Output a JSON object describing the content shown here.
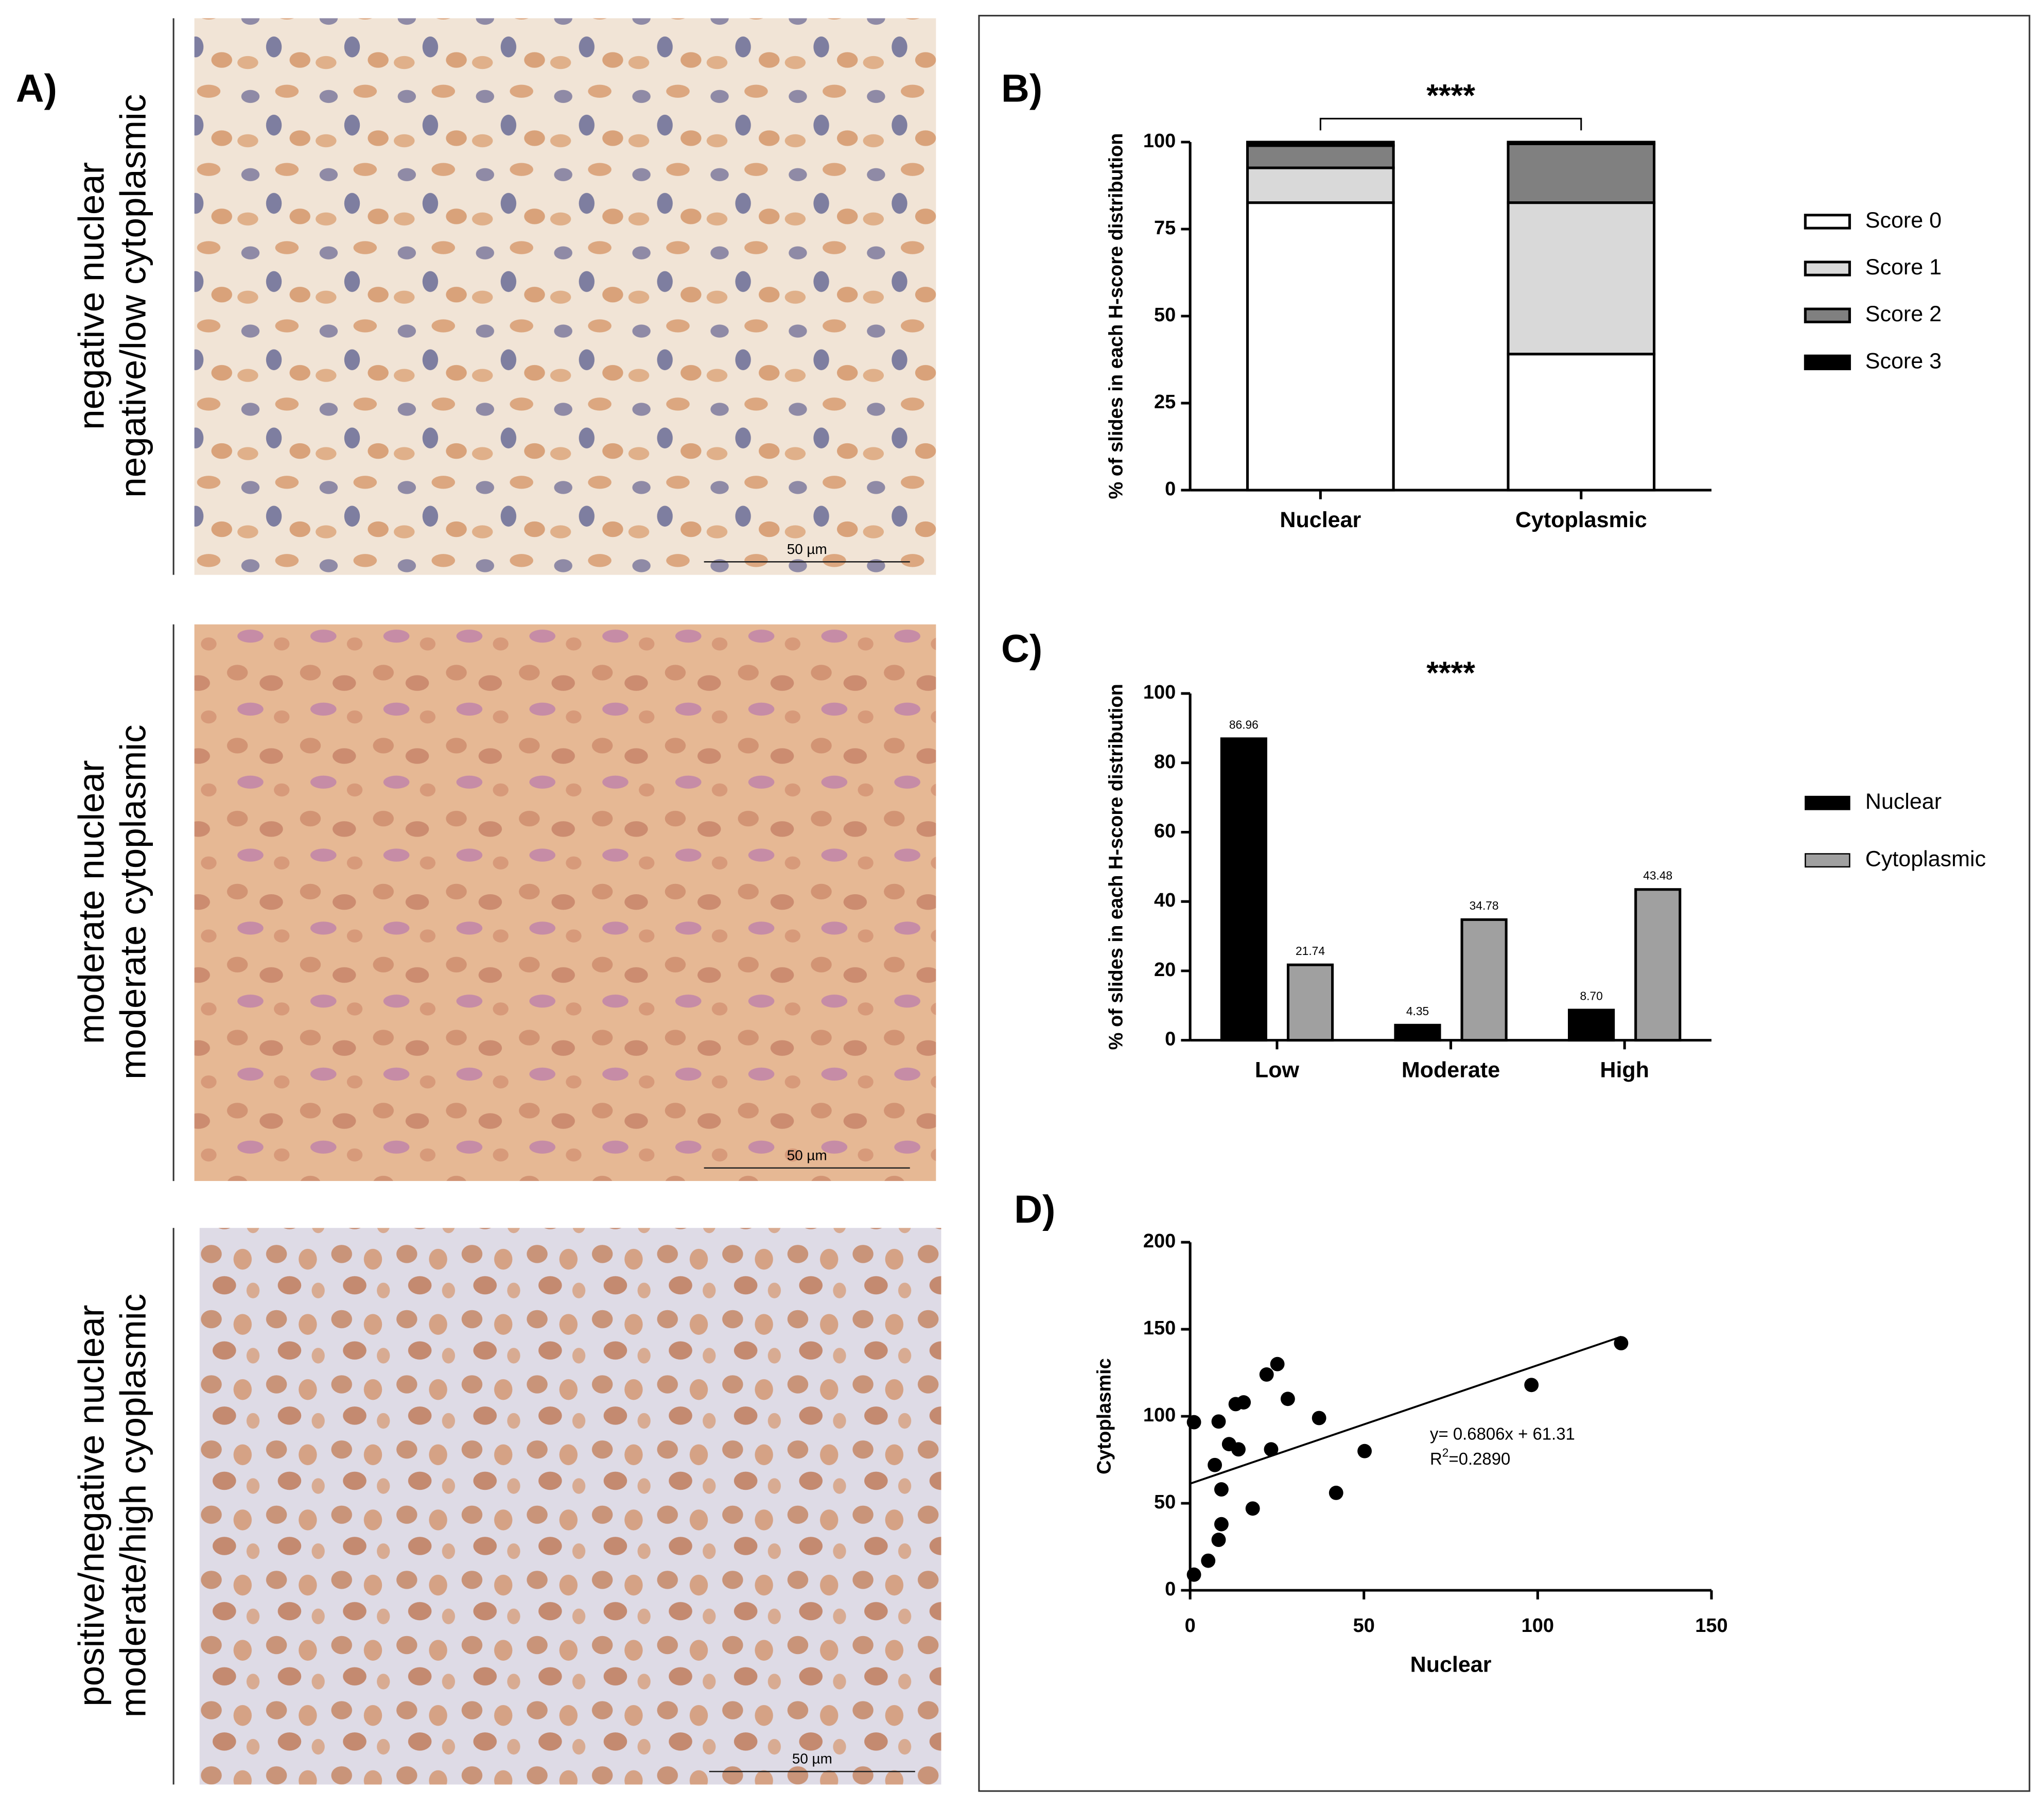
{
  "figure_label": "A)",
  "micrographs": [
    {
      "label": [
        "negative nuclear",
        "negative/low cytoplasmic"
      ],
      "scale_bar": "50 µm"
    },
    {
      "label": [
        "moderate nuclear",
        "moderate cytoplasmic"
      ],
      "scale_bar": "50 µm"
    },
    {
      "label": [
        "positive/negative nuclear",
        "moderate/high cyoplasmic"
      ],
      "scale_bar": "50 µm"
    }
  ],
  "chart_data": [
    {
      "type": "stacked-bar",
      "panel_label": "B)",
      "annotation": "****",
      "y_label": "% of slides in each H-score distribution",
      "categories": [
        "Nuclear",
        "Cytoplasmic"
      ],
      "series": [
        {
          "name": "Score 0",
          "color": "#ffffff",
          "values": [
            82.6,
            39.1
          ]
        },
        {
          "name": "Score 1",
          "color": "#d9d9d9",
          "values": [
            10.0,
            43.5
          ]
        },
        {
          "name": "Score 2",
          "color": "#808080",
          "values": [
            6.4,
            16.9
          ]
        },
        {
          "name": "Score 3",
          "color": "#000000",
          "values": [
            1.0,
            0.5
          ]
        }
      ],
      "ylim": [
        0,
        100
      ],
      "yticks": [
        0,
        25,
        50,
        75,
        100
      ]
    },
    {
      "type": "grouped-bar",
      "panel_label": "C)",
      "annotation": "****",
      "y_label": "% of slides in each H-score distribution",
      "categories": [
        "Low",
        "Moderate",
        "High"
      ],
      "series": [
        {
          "name": "Nuclear",
          "color": "#000000",
          "values": [
            86.96,
            4.35,
            8.7
          ],
          "value_labels": [
            "86.96",
            "4.35",
            "8.70"
          ]
        },
        {
          "name": "Cytoplasmic",
          "color": "#a0a0a0",
          "values": [
            21.74,
            34.78,
            43.48
          ],
          "value_labels": [
            "21.74",
            "34.78",
            "43.48"
          ]
        }
      ],
      "ylim": [
        0,
        100
      ],
      "yticks": [
        0,
        20,
        40,
        60,
        80,
        100
      ]
    },
    {
      "type": "scatter",
      "panel_label": "D)",
      "x_label": "Nuclear",
      "y_label": "Cytoplasmic",
      "x": [
        1.1,
        1.1,
        5.2,
        8.2,
        9,
        9,
        7.1,
        8.2,
        11.2,
        13.9,
        13.1,
        15.4,
        18,
        22,
        23.3,
        25.1,
        28.1,
        37.1,
        42,
        50.2,
        98.2,
        124
      ],
      "values": [
        9,
        96.6,
        17,
        29,
        38,
        58,
        72,
        97,
        84,
        81,
        107,
        108,
        47,
        124,
        81,
        130,
        110,
        99,
        56,
        80,
        118,
        142
      ],
      "color": "#000000",
      "fit": {
        "slope": 0.6806,
        "intercept": 61.31
      },
      "equation": "y= 0.6806x + 61.31",
      "r2_label": {
        "base": "R",
        "sup": "2",
        "rest": "=0.2890"
      },
      "xlim": [
        0,
        150
      ],
      "xticks": [
        0,
        50,
        100,
        150
      ],
      "ylim": [
        0,
        200
      ],
      "yticks": [
        0,
        50,
        100,
        150,
        200
      ]
    }
  ]
}
